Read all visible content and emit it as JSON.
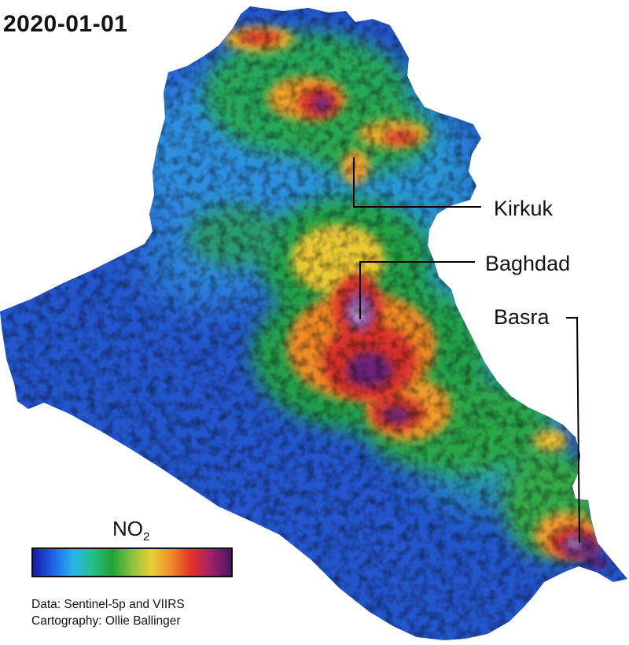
{
  "date": "2020-01-01",
  "cities": [
    {
      "name": "Kirkuk"
    },
    {
      "name": "Baghdad"
    },
    {
      "name": "Basra"
    }
  ],
  "legend": {
    "title_main": "NO",
    "title_sub": "2",
    "colors": [
      "#1a1aa6",
      "#1f60e8",
      "#2ab2ee",
      "#25c08a",
      "#1fa23a",
      "#8cc23c",
      "#eccf36",
      "#f08a28",
      "#e0302a",
      "#a0206a",
      "#4a1560"
    ]
  },
  "credits": {
    "data": "Data: Sentinel-5p and VIIRS",
    "cartography": "Cartography: Ollie Ballinger"
  }
}
